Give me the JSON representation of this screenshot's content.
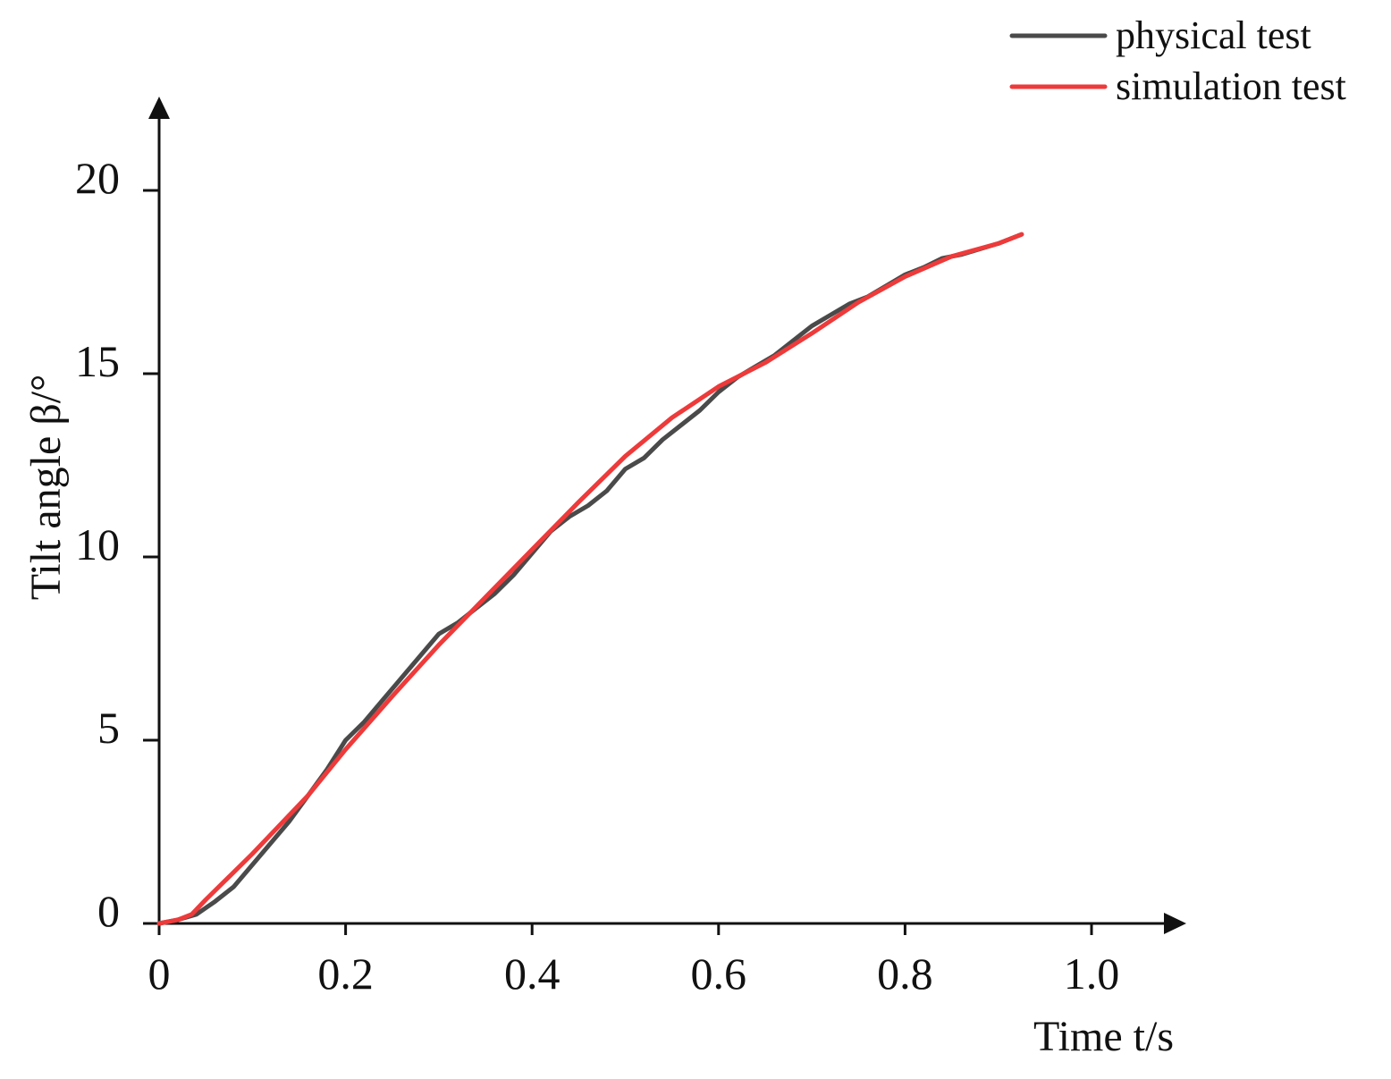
{
  "chart_data": {
    "type": "line",
    "xlabel": "Time t/s",
    "ylabel": "Tilt angle β/°",
    "xlim": [
      0,
      1.1
    ],
    "ylim": [
      0,
      22
    ],
    "x_ticks": [
      0,
      0.2,
      0.4,
      0.6,
      0.8,
      1.0
    ],
    "x_tick_labels": [
      "0",
      "0.2",
      "0.4",
      "0.6",
      "0.8",
      "1.0"
    ],
    "y_ticks": [
      0,
      5,
      10,
      15,
      20
    ],
    "y_tick_labels": [
      "0",
      "5",
      "10",
      "15",
      "20"
    ],
    "grid": false,
    "legend_position": "top-right",
    "series": [
      {
        "name": "physical test",
        "color": "#4a4a4a",
        "points": [
          [
            0,
            0
          ],
          [
            0.02,
            0.1
          ],
          [
            0.04,
            0.25
          ],
          [
            0.06,
            0.6
          ],
          [
            0.08,
            1.0
          ],
          [
            0.1,
            1.6
          ],
          [
            0.12,
            2.2
          ],
          [
            0.14,
            2.8
          ],
          [
            0.16,
            3.5
          ],
          [
            0.18,
            4.2
          ],
          [
            0.2,
            5.0
          ],
          [
            0.22,
            5.5
          ],
          [
            0.24,
            6.1
          ],
          [
            0.26,
            6.7
          ],
          [
            0.28,
            7.3
          ],
          [
            0.3,
            7.9
          ],
          [
            0.32,
            8.2
          ],
          [
            0.34,
            8.6
          ],
          [
            0.36,
            9.0
          ],
          [
            0.38,
            9.5
          ],
          [
            0.4,
            10.1
          ],
          [
            0.42,
            10.7
          ],
          [
            0.44,
            11.1
          ],
          [
            0.46,
            11.4
          ],
          [
            0.48,
            11.8
          ],
          [
            0.5,
            12.4
          ],
          [
            0.52,
            12.7
          ],
          [
            0.54,
            13.2
          ],
          [
            0.56,
            13.6
          ],
          [
            0.58,
            14.0
          ],
          [
            0.6,
            14.5
          ],
          [
            0.62,
            14.9
          ],
          [
            0.64,
            15.2
          ],
          [
            0.66,
            15.5
          ],
          [
            0.68,
            15.9
          ],
          [
            0.7,
            16.3
          ],
          [
            0.72,
            16.6
          ],
          [
            0.74,
            16.9
          ],
          [
            0.76,
            17.1
          ],
          [
            0.78,
            17.4
          ],
          [
            0.8,
            17.7
          ],
          [
            0.82,
            17.9
          ],
          [
            0.84,
            18.15
          ],
          [
            0.86,
            18.25
          ],
          [
            0.88,
            18.4
          ],
          [
            0.9,
            18.55
          ],
          [
            0.925,
            18.8
          ]
        ]
      },
      {
        "name": "simulation test",
        "color": "#ee3a3a",
        "points": [
          [
            0,
            0
          ],
          [
            0.02,
            0.1
          ],
          [
            0.035,
            0.25
          ],
          [
            0.05,
            0.65
          ],
          [
            0.07,
            1.15
          ],
          [
            0.1,
            1.9
          ],
          [
            0.13,
            2.7
          ],
          [
            0.16,
            3.5
          ],
          [
            0.2,
            4.75
          ],
          [
            0.25,
            6.2
          ],
          [
            0.3,
            7.6
          ],
          [
            0.35,
            8.9
          ],
          [
            0.4,
            10.2
          ],
          [
            0.45,
            11.5
          ],
          [
            0.5,
            12.75
          ],
          [
            0.55,
            13.8
          ],
          [
            0.6,
            14.65
          ],
          [
            0.65,
            15.3
          ],
          [
            0.7,
            16.1
          ],
          [
            0.75,
            16.95
          ],
          [
            0.8,
            17.65
          ],
          [
            0.85,
            18.2
          ],
          [
            0.9,
            18.55
          ],
          [
            0.925,
            18.8
          ]
        ]
      }
    ]
  }
}
